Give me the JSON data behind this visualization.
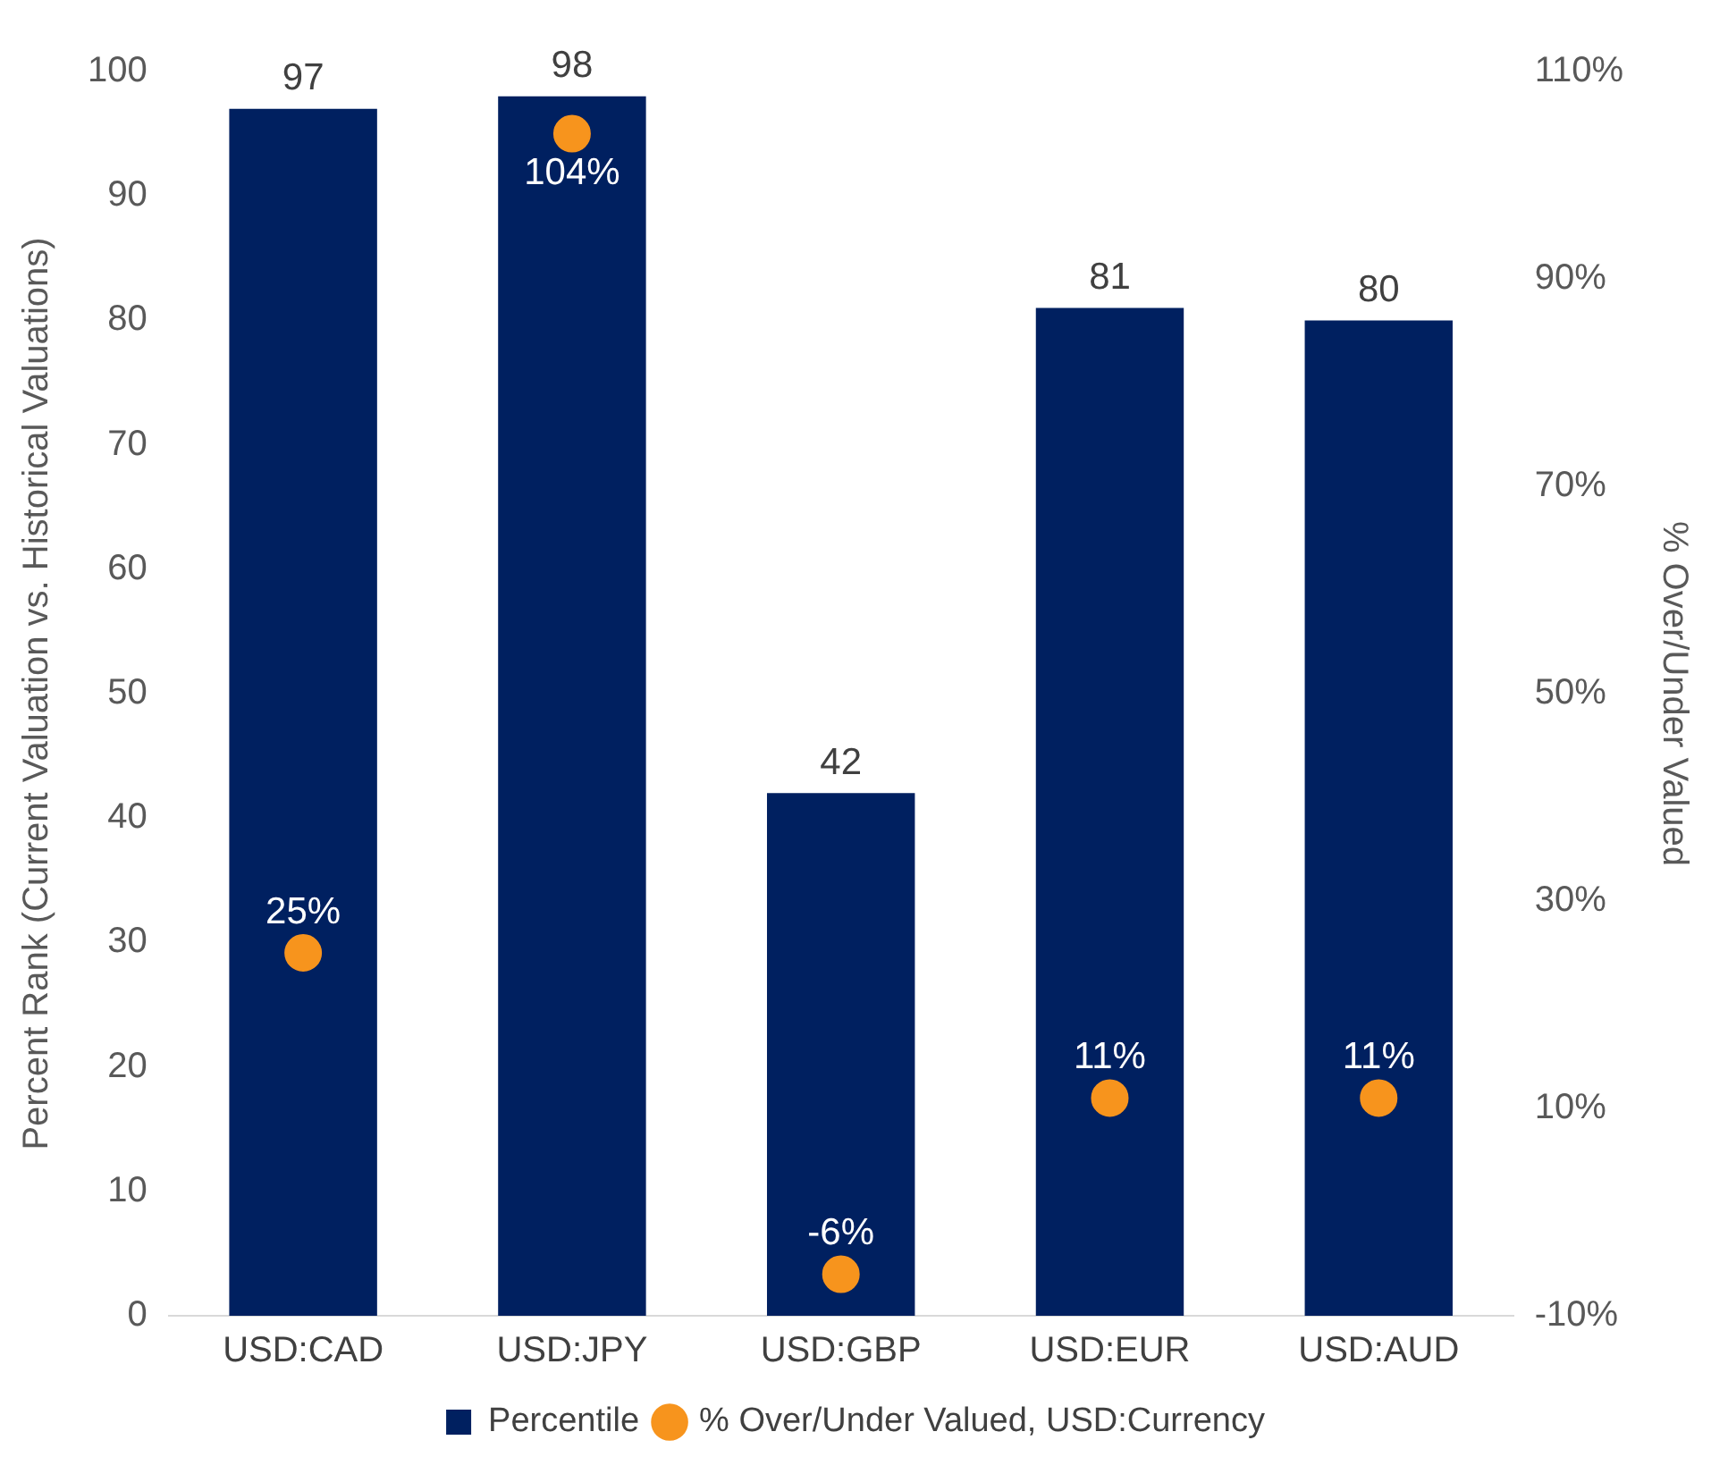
{
  "chart_data": {
    "type": "bar",
    "categories": [
      "USD:CAD",
      "USD:JPY",
      "USD:GBP",
      "USD:EUR",
      "USD:AUD"
    ],
    "ylabel": "Percent Rank (Current Valuation vs. Historical Valuations)",
    "y2label": "% Over/Under Valued",
    "ylim": [
      0,
      100
    ],
    "yticks": [
      0,
      10,
      20,
      30,
      40,
      50,
      60,
      70,
      80,
      90,
      100
    ],
    "y2lim": [
      -10,
      110
    ],
    "y2ticks": [
      {
        "value": -10,
        "label": "-10%"
      },
      {
        "value": 10,
        "label": "10%"
      },
      {
        "value": 30,
        "label": "30%"
      },
      {
        "value": 50,
        "label": "50%"
      },
      {
        "value": 70,
        "label": "70%"
      },
      {
        "value": 90,
        "label": "90%"
      },
      {
        "value": 110,
        "label": "110%"
      }
    ],
    "grid": false,
    "legend": "bottom",
    "series": [
      {
        "name": "Percentile",
        "color": "#002060",
        "values": [
          97,
          98,
          42,
          81,
          80
        ],
        "value_labels": [
          "97",
          "98",
          "42",
          "81",
          "80"
        ]
      },
      {
        "name": "% Over/Under Valued, USD:Currency",
        "type": "scatter",
        "axis": "y2",
        "marker": "circle",
        "color": "#f7941d",
        "values": [
          25,
          104,
          -6,
          11,
          11
        ],
        "value_labels": [
          "25%",
          "104%",
          "-6%",
          "11%",
          "11%"
        ]
      }
    ]
  }
}
